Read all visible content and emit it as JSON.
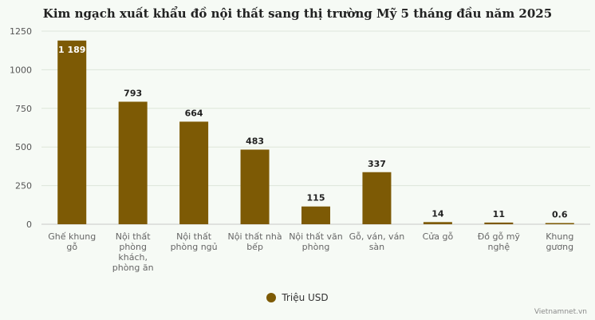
{
  "chart_data": {
    "type": "bar",
    "title": "Kim ngạch xuất khẩu đồ nội thất sang thị trường Mỹ 5 tháng đầu năm 2025",
    "categories": [
      [
        "Ghế khung",
        "gỗ"
      ],
      [
        "Nội thất",
        "phòng",
        "khách,",
        "phòng ăn"
      ],
      [
        "Nội thất",
        "phòng ngủ"
      ],
      [
        "Nội thất nhà",
        "bếp"
      ],
      [
        "Nội thất văn",
        "phòng"
      ],
      [
        "Gỗ, ván, ván",
        "sàn"
      ],
      [
        "Cửa gỗ"
      ],
      [
        "Đồ gỗ mỹ",
        "nghệ"
      ],
      [
        "Khung",
        "gương"
      ]
    ],
    "series": [
      {
        "name": "Triệu USD",
        "values": [
          1189,
          793,
          664,
          483,
          115,
          337,
          14,
          11,
          0.6
        ],
        "labels": [
          "1 189",
          "793",
          "664",
          "483",
          "115",
          "337",
          "14",
          "11",
          "0.6"
        ]
      }
    ],
    "yticks": [
      "0",
      "250",
      "500",
      "750",
      "1000",
      "1250"
    ],
    "ylim": [
      0,
      1250
    ],
    "grid": true,
    "legend_position": "bottom-center",
    "bar_color": "#7d5a05",
    "watermark": "Vietnamnet.vn"
  }
}
